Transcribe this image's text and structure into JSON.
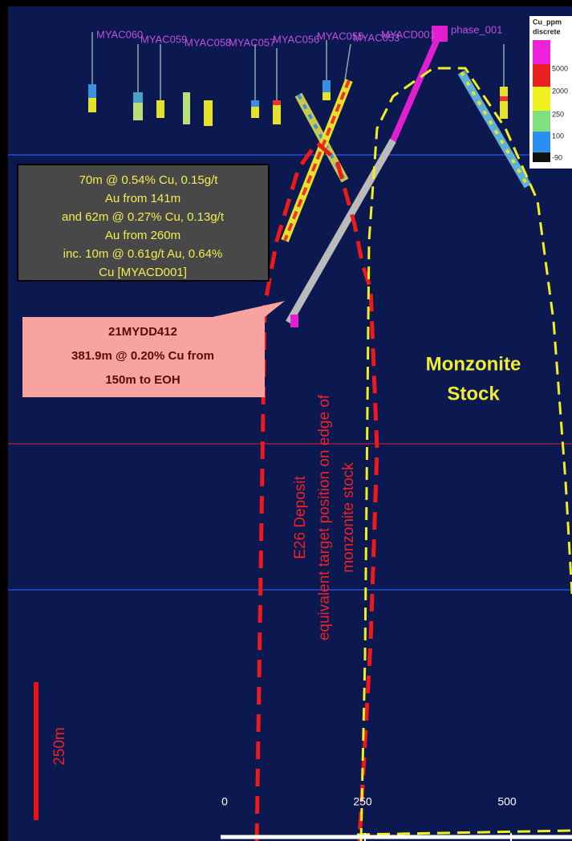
{
  "drillhole_labels": [
    "MYAC060",
    "MYAC059",
    "MYAC058",
    "MYAC057",
    "MYAC056",
    "MYAC055",
    "MYAC053",
    "MYACD001",
    "phase_001"
  ],
  "legend": {
    "title": "Cu_ppm",
    "subtitle": "discrete",
    "items": [
      "5000",
      "2000",
      "250",
      "100",
      "-90"
    ]
  },
  "callout_intercept": {
    "lines": [
      "70m @ 0.54% Cu, 0.15g/t",
      "Au from 141m",
      "and 62m @ 0.27% Cu, 0.13g/t",
      "Au from 260m",
      "inc. 10m @ 0.61g/t Au, 0.64%",
      "Cu [MYACD001]"
    ]
  },
  "callout_hole": {
    "lines": [
      "21MYDD412",
      "381.9m @ 0.20% Cu from",
      "150m to EOH"
    ]
  },
  "stock_label": {
    "lines": [
      "Monzonite",
      "Stock"
    ]
  },
  "target_label": {
    "lines": [
      "E26 Deposit",
      "equivalent target position on edge of",
      "monzonite stock"
    ]
  },
  "scale_bar": {
    "label": "250m"
  },
  "distance_axis": {
    "labels": [
      "0",
      "250",
      "500"
    ]
  }
}
